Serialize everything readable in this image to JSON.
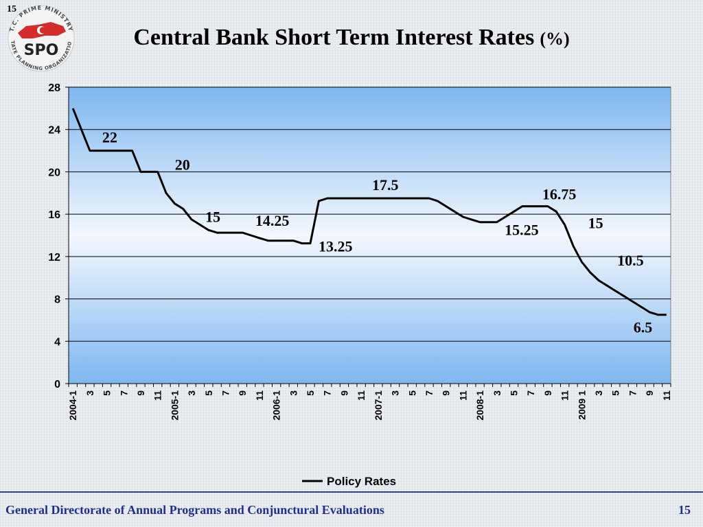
{
  "slide": {
    "page_number_top": "15",
    "title": "Central Bank Short Term Interest Rates",
    "title_unit": "(%)",
    "footer_text": "General Directorate of Annual Programs and Conjunctural Evaluations",
    "footer_page": "15"
  },
  "logo": {
    "text": "SPO",
    "ring_text_top": "T.C. PRIME MINISTRY",
    "ring_text_bottom": "STATE PLANNING ORGANIZATION"
  },
  "colors": {
    "plot_top": "#7eb7f0",
    "plot_mid": "#f4f8fd",
    "plot_bottom": "#7eb7f0",
    "line": "#000000",
    "footer": "#1f2f8c",
    "logo_red": "#d42b2b"
  },
  "chart_data": {
    "type": "line",
    "title": "Central Bank Short Term Interest Rates (%)",
    "xlabel": "",
    "ylabel": "",
    "ylim": [
      0,
      28
    ],
    "yticks": [
      0,
      4,
      8,
      12,
      16,
      20,
      24,
      28
    ],
    "grid": true,
    "legend_position": "bottom",
    "x_tick_labels": [
      "2004-1",
      "3",
      "5",
      "7",
      "9",
      "11",
      "2005-1",
      "3",
      "5",
      "7",
      "9",
      "11",
      "2006-1",
      "3",
      "5",
      "7",
      "9",
      "11",
      "2007-1",
      "3",
      "5",
      "7",
      "9",
      "11",
      "2008-1",
      "3",
      "5",
      "7",
      "9",
      "11",
      "2009 1",
      "3",
      "5",
      "7",
      "9",
      "11"
    ],
    "series": [
      {
        "name": "Policy Rates",
        "values": [
          26,
          24,
          22,
          22,
          22,
          22,
          22,
          22,
          20,
          20,
          20,
          18,
          17,
          16.5,
          15.5,
          15,
          14.5,
          14.25,
          14.25,
          14.25,
          14.25,
          14,
          13.75,
          13.5,
          13.5,
          13.5,
          13.5,
          13.25,
          13.25,
          17.25,
          17.5,
          17.5,
          17.5,
          17.5,
          17.5,
          17.5,
          17.5,
          17.5,
          17.5,
          17.5,
          17.5,
          17.5,
          17.5,
          17.25,
          16.75,
          16.25,
          15.75,
          15.5,
          15.25,
          15.25,
          15.25,
          15.75,
          16.25,
          16.75,
          16.75,
          16.75,
          16.75,
          16.25,
          15,
          13,
          11.5,
          10.5,
          9.75,
          9.25,
          8.75,
          8.25,
          7.75,
          7.25,
          6.75,
          6.5,
          6.5
        ]
      }
    ],
    "annotations": [
      {
        "text": "22",
        "x": 5,
        "y": 22
      },
      {
        "text": "20",
        "x": 13,
        "y": 20
      },
      {
        "text": "15",
        "x": 17,
        "y": 15
      },
      {
        "text": "14.25",
        "x": 24,
        "y": 14.25
      },
      {
        "text": "13.25",
        "x": 30,
        "y": 13.25
      },
      {
        "text": "17.5",
        "x": 37,
        "y": 17.5
      },
      {
        "text": "15.25",
        "x": 53,
        "y": 15.25
      },
      {
        "text": "16.75",
        "x": 58,
        "y": 16.75
      },
      {
        "text": "15",
        "x": 61,
        "y": 15
      },
      {
        "text": "10.5",
        "x": 66,
        "y": 10.5
      },
      {
        "text": "6.5",
        "x": 69,
        "y": 6.5
      }
    ]
  }
}
